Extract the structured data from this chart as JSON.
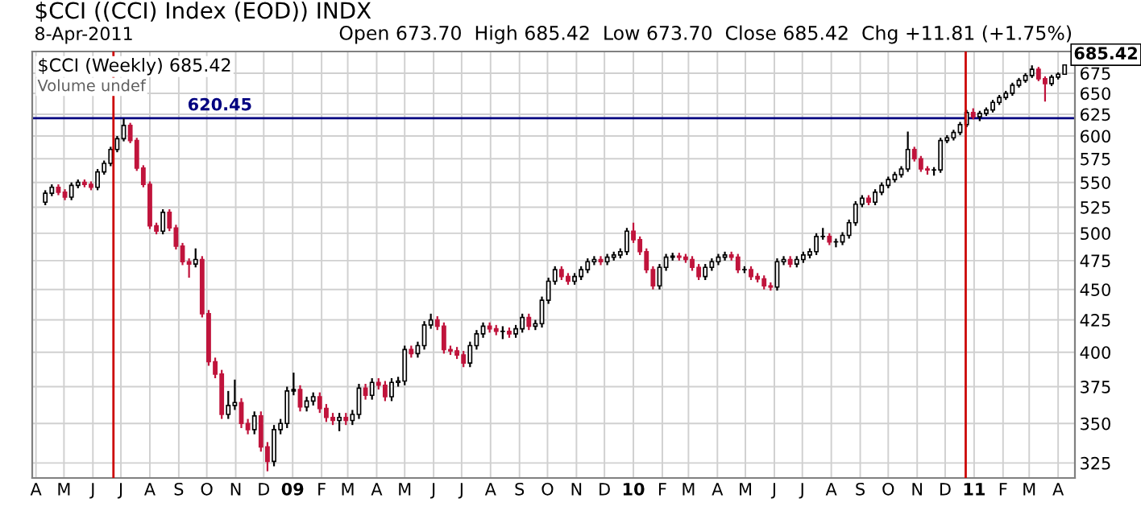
{
  "chart_data": {
    "type": "candlestick",
    "title": "$CCI ((CCI) Index (EOD)) INDX",
    "colors": [
      "#ffffff",
      "#ffffff",
      "#c0143c",
      "#c0143c",
      "#ffffff",
      "#ffffff",
      "#c0143c",
      "#c0143c",
      "#ffffff",
      "#ffffff",
      "#ffffff",
      "#ffffff",
      "#ffffff",
      "#c0143c",
      "#c0143c",
      "#c0143c",
      "#c0143c",
      "#c0143c",
      "#ffffff",
      "#c0143c",
      "#c0143c",
      "#c0143c",
      "#c0143c",
      "#ffffff",
      "#c0143c",
      "#c0143c",
      "#c0143c",
      "#c0143c",
      "#ffffff",
      "#ffffff",
      "#c0143c",
      "#c0143c",
      "#ffffff",
      "#c0143c",
      "#c0143c",
      "#ffffff",
      "#ffffff",
      "#ffffff",
      "#ffffff",
      "#c0143c",
      "#ffffff",
      "#ffffff",
      "#c0143c",
      "#c0143c",
      "#c0143c",
      "#ffffff",
      "#c0143c",
      "#ffffff",
      "#ffffff",
      "#c0143c",
      "#ffffff",
      "#c0143c",
      "#c0143c",
      "#ffffff",
      "#ffffff",
      "#ffffff",
      "#c0143c",
      "#ffffff",
      "#ffffff",
      "#ffffff",
      "#c0143c",
      "#c0143c",
      "#c0143c",
      "#c0143c",
      "#c0143c",
      "#ffffff",
      "#ffffff",
      "#ffffff",
      "#c0143c",
      "#c0143c",
      "#000000",
      "#c0143c",
      "#ffffff",
      "#ffffff",
      "#c0143c",
      "#ffffff",
      "#ffffff",
      "#ffffff",
      "#ffffff",
      "#c0143c",
      "#c0143c",
      "#ffffff",
      "#ffffff",
      "#ffffff",
      "#ffffff",
      "#c0143c",
      "#ffffff",
      "#ffffff",
      "#ffffff",
      "#ffffff",
      "#c0143c",
      "#c0143c",
      "#c0143c",
      "#c0143c",
      "#ffffff",
      "#ffffff",
      "#ffffff",
      "#c0143c",
      "#c0143c",
      "#c0143c",
      "#c0143c",
      "#ffffff",
      "#ffffff",
      "#ffffff",
      "#ffffff",
      "#c0143c",
      "#c0143c",
      "#000000",
      "#c0143c",
      "#c0143c",
      "#c0143c",
      "#c0143c",
      "#ffffff",
      "#ffffff",
      "#c0143c",
      "#ffffff",
      "#ffffff",
      "#ffffff",
      "#ffffff",
      "#000000",
      "#c0143c",
      "#000000",
      "#ffffff",
      "#ffffff",
      "#ffffff",
      "#ffffff",
      "#c0143c",
      "#ffffff",
      "#ffffff",
      "#ffffff",
      "#ffffff",
      "#ffffff",
      "#ffffff",
      "#c0143c",
      "#c0143c",
      "#c0143c",
      "#000000",
      "#ffffff",
      "#ffffff",
      "#ffffff",
      "#ffffff",
      "#ffffff",
      "#c0143c",
      "#ffffff",
      "#ffffff",
      "#ffffff",
      "#ffffff",
      "#ffffff",
      "#ffffff",
      "#ffffff",
      "#ffffff",
      "#ffffff",
      "#c0143c",
      "#c0143c",
      "#ffffff",
      "#ffffff",
      "#ffffff"
    ],
    "log": "y",
    "grid": true,
    "ylim": [
      316,
      703
    ],
    "yticks": [
      325,
      350,
      375,
      400,
      425,
      450,
      475,
      500,
      525,
      550,
      575,
      600,
      625,
      650,
      675
    ],
    "xlim": [
      "2008-03-28",
      "2011-04-19"
    ],
    "xticks": [
      {
        "value": "2008-04-01",
        "label": "A"
      },
      {
        "value": "2008-05-01",
        "label": "M"
      },
      {
        "value": "2008-06-01",
        "label": "J"
      },
      {
        "value": "2008-07-01",
        "label": "J"
      },
      {
        "value": "2008-08-01",
        "label": "A"
      },
      {
        "value": "2008-09-01",
        "label": "S"
      },
      {
        "value": "2008-10-01",
        "label": "O"
      },
      {
        "value": "2008-11-01",
        "label": "N"
      },
      {
        "value": "2008-12-01",
        "label": "D"
      },
      {
        "value": "2009-01-01",
        "label": "09"
      },
      {
        "value": "2009-02-01",
        "label": "F"
      },
      {
        "value": "2009-03-01",
        "label": "M"
      },
      {
        "value": "2009-04-01",
        "label": "A"
      },
      {
        "value": "2009-05-01",
        "label": "M"
      },
      {
        "value": "2009-06-01",
        "label": "J"
      },
      {
        "value": "2009-07-01",
        "label": "J"
      },
      {
        "value": "2009-08-01",
        "label": "A"
      },
      {
        "value": "2009-09-01",
        "label": "S"
      },
      {
        "value": "2009-10-01",
        "label": "O"
      },
      {
        "value": "2009-11-01",
        "label": "N"
      },
      {
        "value": "2009-12-01",
        "label": "D"
      },
      {
        "value": "2010-01-01",
        "label": "10"
      },
      {
        "value": "2010-02-01",
        "label": "F"
      },
      {
        "value": "2010-03-01",
        "label": "M"
      },
      {
        "value": "2010-04-01",
        "label": "A"
      },
      {
        "value": "2010-05-01",
        "label": "M"
      },
      {
        "value": "2010-06-01",
        "label": "J"
      },
      {
        "value": "2010-07-01",
        "label": "J"
      },
      {
        "value": "2010-08-01",
        "label": "A"
      },
      {
        "value": "2010-09-01",
        "label": "S"
      },
      {
        "value": "2010-10-01",
        "label": "O"
      },
      {
        "value": "2010-11-01",
        "label": "N"
      },
      {
        "value": "2010-12-01",
        "label": "D"
      },
      {
        "value": "2011-01-01",
        "label": "11"
      },
      {
        "value": "2011-02-01",
        "label": "F"
      },
      {
        "value": "2011-03-01",
        "label": "M"
      },
      {
        "value": "2011-04-01",
        "label": "A"
      }
    ],
    "ref_lines": [
      {
        "axis": "y",
        "value": 620.45,
        "label": "620.45",
        "color": "#000080"
      },
      {
        "axis": "x",
        "value": "2008-06-23",
        "color": "#cc0000"
      },
      {
        "axis": "x",
        "value": "2010-12-23",
        "color": "#cc0000"
      }
    ],
    "annotations": [
      "8-Apr-2011",
      "Open 673.70  High 685.42  Low 673.70  Close 685.42  Chg +11.81 (+1.75%)",
      "$CCI (Weekly) 685.42",
      "Volume undef",
      {
        "text": "685.42",
        "x": "2011-04-08",
        "y": 685.42
      }
    ],
    "x": [
      "2008-04-11",
      "2008-04-18",
      "2008-04-25",
      "2008-05-02",
      "2008-05-09",
      "2008-05-16",
      "2008-05-23",
      "2008-05-30",
      "2008-06-06",
      "2008-06-13",
      "2008-06-20",
      "2008-06-27",
      "2008-07-04",
      "2008-07-11",
      "2008-07-18",
      "2008-07-25",
      "2008-08-01",
      "2008-08-08",
      "2008-08-15",
      "2008-08-22",
      "2008-08-29",
      "2008-09-05",
      "2008-09-12",
      "2008-09-19",
      "2008-09-26",
      "2008-10-03",
      "2008-10-10",
      "2008-10-17",
      "2008-10-24",
      "2008-10-31",
      "2008-11-07",
      "2008-11-14",
      "2008-11-21",
      "2008-11-28",
      "2008-12-05",
      "2008-12-12",
      "2008-12-19",
      "2008-12-26",
      "2009-01-02",
      "2009-01-09",
      "2009-01-16",
      "2009-01-23",
      "2009-01-30",
      "2009-02-06",
      "2009-02-13",
      "2009-02-20",
      "2009-02-27",
      "2009-03-06",
      "2009-03-13",
      "2009-03-20",
      "2009-03-27",
      "2009-04-03",
      "2009-04-10",
      "2009-04-17",
      "2009-04-24",
      "2009-05-01",
      "2009-05-08",
      "2009-05-15",
      "2009-05-22",
      "2009-05-29",
      "2009-06-05",
      "2009-06-12",
      "2009-06-19",
      "2009-06-26",
      "2009-07-03",
      "2009-07-10",
      "2009-07-17",
      "2009-07-24",
      "2009-07-31",
      "2009-08-07",
      "2009-08-14",
      "2009-08-21",
      "2009-08-28",
      "2009-09-04",
      "2009-09-11",
      "2009-09-18",
      "2009-09-25",
      "2009-10-02",
      "2009-10-09",
      "2009-10-16",
      "2009-10-23",
      "2009-10-30",
      "2009-11-06",
      "2009-11-13",
      "2009-11-20",
      "2009-11-27",
      "2009-12-04",
      "2009-12-11",
      "2009-12-18",
      "2009-12-25",
      "2010-01-01",
      "2010-01-08",
      "2010-01-15",
      "2010-01-22",
      "2010-01-29",
      "2010-02-05",
      "2010-02-12",
      "2010-02-19",
      "2010-02-26",
      "2010-03-05",
      "2010-03-12",
      "2010-03-19",
      "2010-03-26",
      "2010-04-02",
      "2010-04-09",
      "2010-04-16",
      "2010-04-23",
      "2010-04-30",
      "2010-05-07",
      "2010-05-14",
      "2010-05-21",
      "2010-05-28",
      "2010-06-04",
      "2010-06-11",
      "2010-06-18",
      "2010-06-25",
      "2010-07-02",
      "2010-07-09",
      "2010-07-16",
      "2010-07-23",
      "2010-07-30",
      "2010-08-06",
      "2010-08-13",
      "2010-08-20",
      "2010-08-27",
      "2010-09-03",
      "2010-09-10",
      "2010-09-17",
      "2010-09-24",
      "2010-10-01",
      "2010-10-08",
      "2010-10-15",
      "2010-10-22",
      "2010-10-29",
      "2010-11-05",
      "2010-11-12",
      "2010-11-19",
      "2010-11-26",
      "2010-12-03",
      "2010-12-10",
      "2010-12-17",
      "2010-12-24",
      "2010-12-31",
      "2011-01-07",
      "2011-01-14",
      "2011-01-21",
      "2011-01-28",
      "2011-02-04",
      "2011-02-11",
      "2011-02-18",
      "2011-02-25",
      "2011-03-04",
      "2011-03-11",
      "2011-03-18",
      "2011-03-25",
      "2011-04-01",
      "2011-04-08"
    ],
    "ohlc": [
      [
        530,
        542,
        527,
        539
      ],
      [
        539,
        548,
        536,
        545
      ],
      [
        545,
        548,
        537,
        540
      ],
      [
        540,
        543,
        532,
        535
      ],
      [
        535,
        550,
        532,
        547
      ],
      [
        547,
        553,
        544,
        550
      ],
      [
        550,
        553,
        545,
        548
      ],
      [
        548,
        551,
        542,
        545
      ],
      [
        545,
        564,
        542,
        561
      ],
      [
        561,
        573,
        558,
        570
      ],
      [
        570,
        588,
        567,
        585
      ],
      [
        585,
        600,
        582,
        597
      ],
      [
        597,
        620,
        594,
        612
      ],
      [
        612,
        615,
        592,
        595
      ],
      [
        595,
        598,
        562,
        565
      ],
      [
        565,
        568,
        545,
        548
      ],
      [
        548,
        551,
        504,
        507
      ],
      [
        507,
        510,
        499,
        502
      ],
      [
        502,
        523,
        499,
        520
      ],
      [
        520,
        523,
        502,
        505
      ],
      [
        505,
        508,
        485,
        488
      ],
      [
        488,
        491,
        471,
        474
      ],
      [
        474,
        477,
        460,
        472
      ],
      [
        472,
        486,
        469,
        476
      ],
      [
        476,
        479,
        427,
        430
      ],
      [
        430,
        433,
        390,
        393
      ],
      [
        393,
        396,
        381,
        384
      ],
      [
        384,
        387,
        353,
        356
      ],
      [
        356,
        372,
        353,
        362
      ],
      [
        362,
        380,
        359,
        364
      ],
      [
        364,
        367,
        347,
        350
      ],
      [
        350,
        353,
        343,
        346
      ],
      [
        346,
        358,
        343,
        355
      ],
      [
        355,
        358,
        332,
        335
      ],
      [
        335,
        338,
        320,
        326
      ],
      [
        326,
        349,
        323,
        346
      ],
      [
        346,
        353,
        343,
        350
      ],
      [
        350,
        375,
        347,
        372
      ],
      [
        372,
        385,
        369,
        373
      ],
      [
        373,
        376,
        358,
        361
      ],
      [
        361,
        368,
        358,
        365
      ],
      [
        365,
        371,
        362,
        368
      ],
      [
        368,
        371,
        357,
        360
      ],
      [
        360,
        363,
        351,
        354
      ],
      [
        354,
        357,
        349,
        352
      ],
      [
        352,
        357,
        345,
        354
      ],
      [
        354,
        357,
        349,
        352
      ],
      [
        352,
        359,
        349,
        356
      ],
      [
        356,
        377,
        353,
        374
      ],
      [
        374,
        377,
        366,
        369
      ],
      [
        369,
        381,
        366,
        378
      ],
      [
        378,
        381,
        373,
        376
      ],
      [
        376,
        379,
        365,
        368
      ],
      [
        368,
        381,
        365,
        378
      ],
      [
        378,
        382,
        375,
        379
      ],
      [
        379,
        405,
        376,
        402
      ],
      [
        402,
        405,
        396,
        399
      ],
      [
        399,
        408,
        396,
        405
      ],
      [
        405,
        424,
        402,
        421
      ],
      [
        421,
        430,
        418,
        425
      ],
      [
        425,
        428,
        417,
        420
      ],
      [
        420,
        423,
        399,
        402
      ],
      [
        402,
        405,
        398,
        401
      ],
      [
        401,
        404,
        395,
        398
      ],
      [
        398,
        401,
        389,
        392
      ],
      [
        392,
        408,
        389,
        405
      ],
      [
        405,
        417,
        402,
        414
      ],
      [
        414,
        423,
        411,
        420
      ],
      [
        420,
        423,
        415,
        418
      ],
      [
        418,
        421,
        413,
        416
      ],
      [
        416,
        420,
        410,
        416
      ],
      [
        416,
        419,
        411,
        414
      ],
      [
        414,
        421,
        411,
        418
      ],
      [
        418,
        430,
        415,
        427
      ],
      [
        427,
        430,
        417,
        420
      ],
      [
        420,
        425,
        417,
        422
      ],
      [
        422,
        444,
        419,
        441
      ],
      [
        441,
        460,
        438,
        457
      ],
      [
        457,
        470,
        454,
        467
      ],
      [
        467,
        470,
        458,
        461
      ],
      [
        461,
        464,
        454,
        457
      ],
      [
        457,
        464,
        454,
        461
      ],
      [
        461,
        470,
        458,
        467
      ],
      [
        467,
        477,
        464,
        474
      ],
      [
        474,
        479,
        471,
        476
      ],
      [
        476,
        479,
        471,
        474
      ],
      [
        474,
        481,
        471,
        478
      ],
      [
        478,
        483,
        475,
        480
      ],
      [
        480,
        486,
        477,
        483
      ],
      [
        483,
        505,
        480,
        502
      ],
      [
        502,
        510,
        491,
        494
      ],
      [
        494,
        497,
        480,
        483
      ],
      [
        483,
        486,
        464,
        467
      ],
      [
        467,
        470,
        450,
        453
      ],
      [
        453,
        472,
        450,
        469
      ],
      [
        469,
        481,
        466,
        478
      ],
      [
        478,
        482,
        475,
        479
      ],
      [
        479,
        482,
        475,
        478
      ],
      [
        478,
        481,
        473,
        476
      ],
      [
        476,
        479,
        466,
        469
      ],
      [
        469,
        472,
        458,
        461
      ],
      [
        461,
        472,
        458,
        469
      ],
      [
        469,
        477,
        466,
        474
      ],
      [
        474,
        481,
        471,
        478
      ],
      [
        478,
        483,
        475,
        480
      ],
      [
        480,
        483,
        475,
        478
      ],
      [
        478,
        481,
        464,
        467
      ],
      [
        467,
        470,
        464,
        467
      ],
      [
        467,
        470,
        458,
        461
      ],
      [
        461,
        464,
        456,
        459
      ],
      [
        459,
        462,
        450,
        453
      ],
      [
        453,
        456,
        449,
        452
      ],
      [
        452,
        477,
        449,
        474
      ],
      [
        474,
        479,
        471,
        476
      ],
      [
        476,
        479,
        469,
        472
      ],
      [
        472,
        479,
        469,
        476
      ],
      [
        476,
        483,
        473,
        480
      ],
      [
        480,
        486,
        477,
        483
      ],
      [
        483,
        500,
        480,
        497
      ],
      [
        497,
        505,
        494,
        497
      ],
      [
        497,
        500,
        489,
        492
      ],
      [
        492,
        495,
        487,
        492
      ],
      [
        492,
        501,
        489,
        498
      ],
      [
        498,
        513,
        495,
        510
      ],
      [
        510,
        531,
        507,
        528
      ],
      [
        528,
        537,
        525,
        534
      ],
      [
        534,
        537,
        527,
        530
      ],
      [
        530,
        543,
        527,
        540
      ],
      [
        540,
        550,
        537,
        547
      ],
      [
        547,
        556,
        544,
        553
      ],
      [
        553,
        561,
        550,
        558
      ],
      [
        558,
        567,
        555,
        564
      ],
      [
        564,
        605,
        561,
        585
      ],
      [
        585,
        588,
        572,
        575
      ],
      [
        575,
        578,
        561,
        564
      ],
      [
        564,
        567,
        558,
        563
      ],
      [
        563,
        566,
        557,
        563
      ],
      [
        563,
        598,
        560,
        595
      ],
      [
        595,
        601,
        592,
        598
      ],
      [
        598,
        607,
        595,
        604
      ],
      [
        604,
        616,
        601,
        613
      ],
      [
        613,
        630,
        610,
        627
      ],
      [
        627,
        632,
        619,
        622
      ],
      [
        622,
        629,
        617,
        626
      ],
      [
        626,
        633,
        623,
        630
      ],
      [
        630,
        642,
        627,
        639
      ],
      [
        639,
        648,
        636,
        645
      ],
      [
        645,
        653,
        642,
        650
      ],
      [
        650,
        663,
        647,
        660
      ],
      [
        660,
        669,
        657,
        666
      ],
      [
        666,
        675,
        663,
        672
      ],
      [
        672,
        685,
        669,
        680
      ],
      [
        680,
        683,
        665,
        668
      ],
      [
        668,
        671,
        640,
        662
      ],
      [
        662,
        673,
        659,
        670
      ],
      [
        670,
        676,
        667,
        673.7
      ],
      [
        673.7,
        685.42,
        673.7,
        685.42
      ]
    ]
  }
}
